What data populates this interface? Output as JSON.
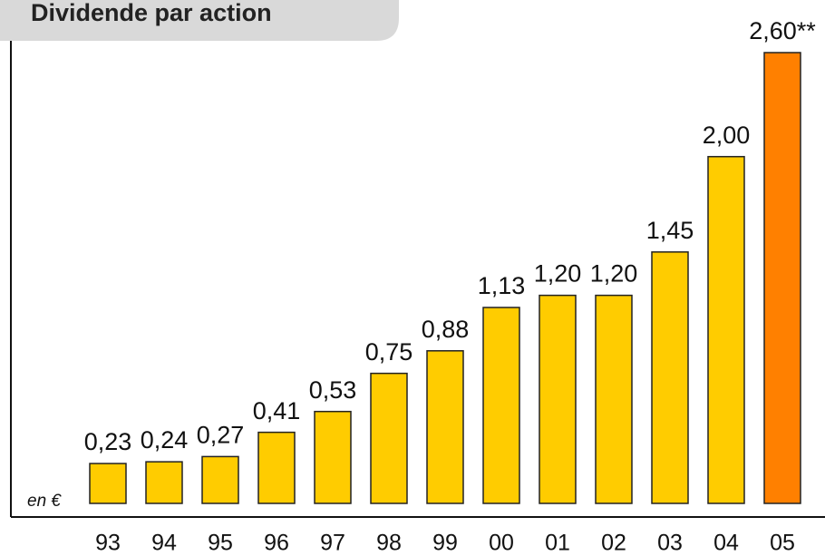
{
  "chart_data": {
    "type": "bar",
    "title": "Dividende par action",
    "annotation": "en €",
    "categories": [
      "93",
      "94",
      "95",
      "96",
      "97",
      "98",
      "99",
      "00",
      "01",
      "02",
      "03",
      "04",
      "05"
    ],
    "values": [
      0.23,
      0.24,
      0.27,
      0.41,
      0.53,
      0.75,
      0.88,
      1.13,
      1.2,
      1.2,
      1.45,
      2.0,
      2.6
    ],
    "value_labels": [
      "0,23",
      "0,24",
      "0,27",
      "0,41",
      "0,53",
      "0,75",
      "0,88",
      "1,13",
      "1,20",
      "1,20",
      "1,45",
      "2,00",
      "2,60**"
    ],
    "colors": [
      "#ffcc00",
      "#ffcc00",
      "#ffcc00",
      "#ffcc00",
      "#ffcc00",
      "#ffcc00",
      "#ffcc00",
      "#ffcc00",
      "#ffcc00",
      "#ffcc00",
      "#ffcc00",
      "#ffcc00",
      "#ff8000"
    ]
  }
}
